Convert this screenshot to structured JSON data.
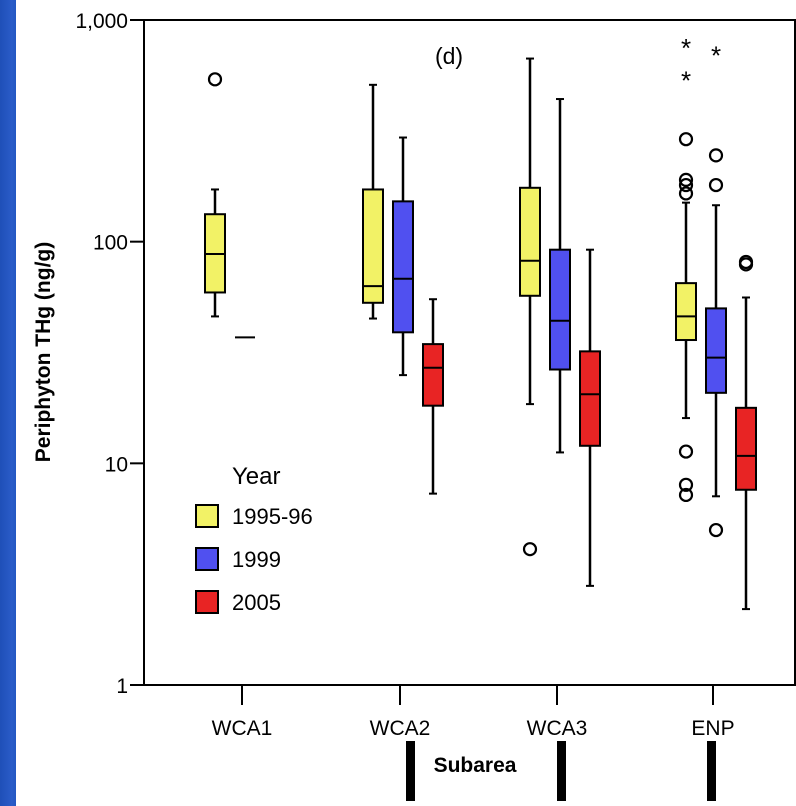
{
  "chart_data": {
    "type": "box",
    "panel_label": "(d)",
    "ylabel": "Periphyton THg (ng/g)",
    "xlabel": "Subarea",
    "yscale": "log",
    "ylim": [
      1,
      1000
    ],
    "yticks": [
      {
        "value": 1,
        "label": "1"
      },
      {
        "value": 10,
        "label": "10"
      },
      {
        "value": 100,
        "label": "100"
      },
      {
        "value": 1000,
        "label": "1,000"
      }
    ],
    "categories": [
      "WCA1",
      "WCA2",
      "WCA3",
      "ENP"
    ],
    "legend": {
      "title": "Year",
      "position": "lower-left",
      "items": [
        {
          "label": "1995-96",
          "color": "#f2f266"
        },
        {
          "label": "1999",
          "color": "#5050f0"
        },
        {
          "label": "2005",
          "color": "#e82424"
        }
      ]
    },
    "series": [
      {
        "name": "1995-96",
        "color": "#f2f266",
        "boxes": [
          {
            "category": "WCA1",
            "whisker_low": 46,
            "q1": 59,
            "median": 88,
            "q3": 133,
            "whisker_high": 172,
            "outliers": [
              540
            ],
            "extremes": []
          },
          {
            "category": "WCA2",
            "whisker_low": 45,
            "q1": 53,
            "median": 63,
            "q3": 172,
            "whisker_high": 510,
            "outliers": [],
            "extremes": []
          },
          {
            "category": "WCA3",
            "whisker_low": 18.5,
            "q1": 57,
            "median": 82,
            "q3": 175,
            "whisker_high": 670,
            "outliers": [
              4.1
            ],
            "extremes": []
          },
          {
            "category": "ENP",
            "whisker_low": 16,
            "q1": 36,
            "median": 46,
            "q3": 65,
            "whisker_high": 150,
            "outliers": [
              7.2,
              8.0,
              11.3,
              165,
              180,
              190,
              290
            ],
            "extremes": [
              550,
              770
            ]
          }
        ]
      },
      {
        "name": "1999",
        "color": "#5050f0",
        "boxes": [
          {
            "category": "WCA1",
            "median": 37,
            "single_line": true
          },
          {
            "category": "WCA2",
            "whisker_low": 25,
            "q1": 39,
            "median": 68,
            "q3": 152,
            "whisker_high": 295,
            "outliers": [],
            "extremes": []
          },
          {
            "category": "WCA3",
            "whisker_low": 11.2,
            "q1": 26.5,
            "median": 44,
            "q3": 92,
            "whisker_high": 440,
            "outliers": [],
            "extremes": []
          },
          {
            "category": "ENP",
            "whisker_low": 7.1,
            "q1": 20.8,
            "median": 30,
            "q3": 50,
            "whisker_high": 146,
            "outliers": [
              5.0,
              180,
              245
            ],
            "extremes": [
              715
            ]
          }
        ]
      },
      {
        "name": "2005",
        "color": "#e82424",
        "boxes": [
          {
            "category": "WCA2",
            "whisker_low": 7.3,
            "q1": 18.2,
            "median": 27,
            "q3": 34.5,
            "whisker_high": 55,
            "outliers": [],
            "extremes": []
          },
          {
            "category": "WCA3",
            "whisker_low": 2.8,
            "q1": 12,
            "median": 20.5,
            "q3": 32,
            "whisker_high": 92,
            "outliers": [],
            "extremes": []
          },
          {
            "category": "ENP",
            "whisker_low": 2.2,
            "q1": 7.6,
            "median": 10.8,
            "q3": 17.8,
            "whisker_high": 56,
            "outliers": [
              79,
              81
            ],
            "extremes": []
          }
        ]
      }
    ]
  }
}
